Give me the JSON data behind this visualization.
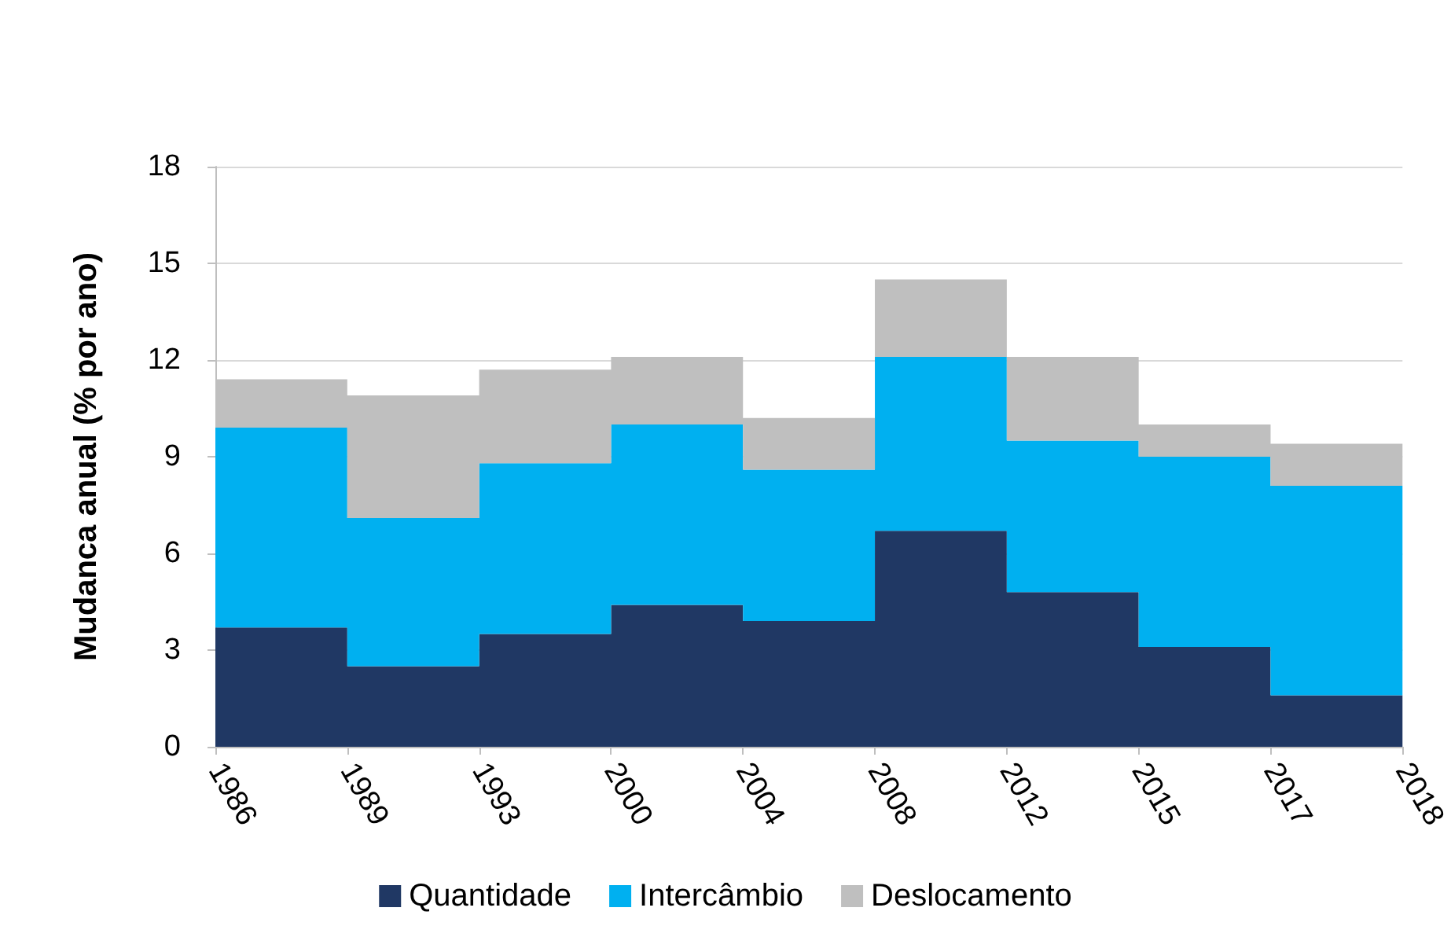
{
  "chart_data": {
    "type": "area",
    "stacked": true,
    "ylabel": "Mudanca anual (% por ano)",
    "categories": [
      "1986",
      "1989",
      "1993",
      "2000",
      "2004",
      "2008",
      "2012",
      "2015",
      "2017",
      "2018"
    ],
    "series": [
      {
        "name": "Quantidade",
        "color": "#203864",
        "values": [
          3.7,
          2.5,
          3.5,
          4.4,
          3.9,
          6.7,
          4.8,
          3.1,
          1.6,
          1.6
        ]
      },
      {
        "name": "Intercâmbio",
        "color": "#00b0f0",
        "values": [
          6.2,
          4.6,
          5.3,
          5.6,
          4.7,
          5.4,
          4.7,
          5.9,
          6.5,
          6.5
        ]
      },
      {
        "name": "Deslocamento",
        "color": "#bfbfbf",
        "values": [
          1.5,
          3.8,
          2.9,
          2.1,
          1.6,
          2.4,
          2.6,
          1.0,
          1.3,
          1.3
        ]
      }
    ],
    "ylim": [
      0,
      18
    ],
    "yticks": [
      0,
      3,
      6,
      9,
      12,
      15,
      18
    ],
    "grid": "y",
    "legend": "bottom",
    "marker": "none"
  }
}
